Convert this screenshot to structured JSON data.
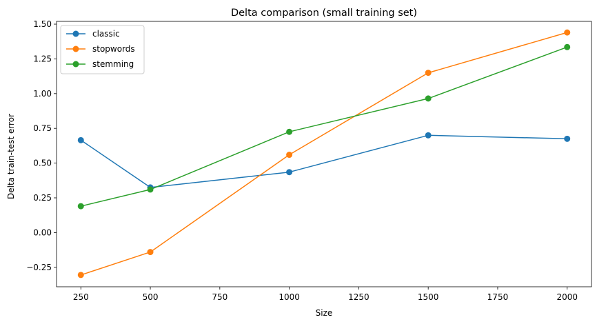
{
  "chart_data": {
    "type": "line",
    "title": "Delta comparison (small training set)",
    "xlabel": "Size",
    "ylabel": "Delta train-test error",
    "x": [
      250,
      500,
      1000,
      1500,
      2000
    ],
    "xlim": [
      162.5,
      2087.5
    ],
    "ylim": [
      -0.39,
      1.52
    ],
    "xticks": [
      250,
      500,
      750,
      1000,
      1250,
      1500,
      1750,
      2000
    ],
    "yticks": [
      -0.25,
      0.0,
      0.25,
      0.5,
      0.75,
      1.0,
      1.25,
      1.5
    ],
    "xtick_labels": [
      "250",
      "500",
      "750",
      "1000",
      "1250",
      "1500",
      "1750",
      "2000"
    ],
    "ytick_labels": [
      "−0.25",
      "0.00",
      "0.25",
      "0.50",
      "0.75",
      "1.00",
      "1.25",
      "1.50"
    ],
    "grid": false,
    "legend_position": "top-left",
    "series": [
      {
        "name": "classic",
        "color": "#1f77b4",
        "values": [
          0.665,
          0.325,
          0.435,
          0.7,
          0.675
        ]
      },
      {
        "name": "stopwords",
        "color": "#ff7f0e",
        "values": [
          -0.305,
          -0.14,
          0.56,
          1.15,
          1.44
        ]
      },
      {
        "name": "stemming",
        "color": "#2ca02c",
        "values": [
          0.19,
          0.31,
          0.725,
          0.965,
          1.335
        ]
      }
    ]
  }
}
